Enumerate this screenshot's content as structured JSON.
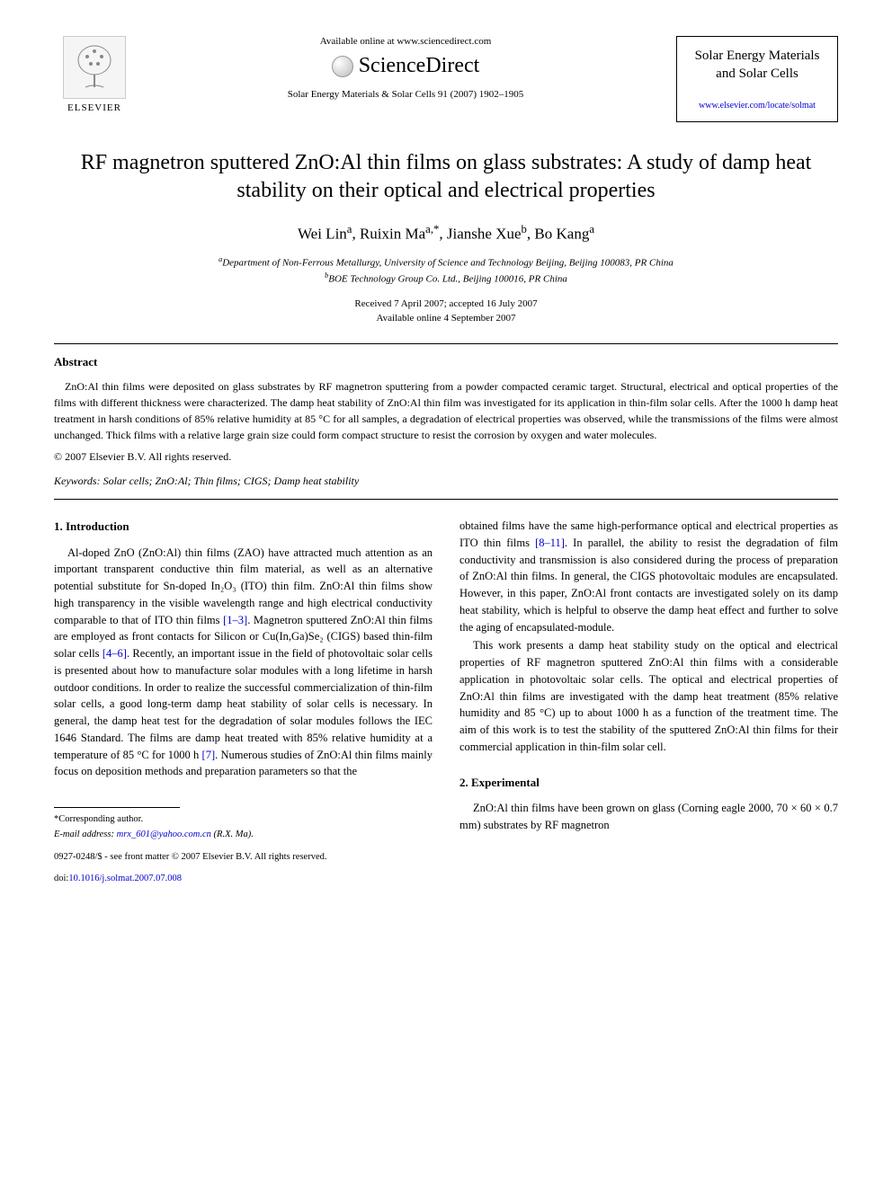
{
  "header": {
    "elsevier_label": "ELSEVIER",
    "available_online": "Available online at www.sciencedirect.com",
    "sciencedirect": "ScienceDirect",
    "citation": "Solar Energy Materials & Solar Cells 91 (2007) 1902–1905",
    "journal_title": "Solar Energy Materials and Solar Cells",
    "journal_link": "www.elsevier.com/locate/solmat"
  },
  "article": {
    "title": "RF magnetron sputtered ZnO:Al thin films on glass substrates: A study of damp heat stability on their optical and electrical properties",
    "authors_html": "Wei Lin<sup>a</sup>, Ruixin Ma<sup>a,*</sup>, Jianshe Xue<sup>b</sup>, Bo Kang<sup>a</sup>",
    "affiliation_a": "Department of Non-Ferrous Metallurgy, University of Science and Technology Beijing, Beijing 100083, PR China",
    "affiliation_b": "BOE Technology Group Co. Ltd., Beijing 100016, PR China",
    "received": "Received 7 April 2007; accepted 16 July 2007",
    "available": "Available online 4 September 2007"
  },
  "abstract": {
    "heading": "Abstract",
    "text": "ZnO:Al thin films were deposited on glass substrates by RF magnetron sputtering from a powder compacted ceramic target. Structural, electrical and optical properties of the films with different thickness were characterized. The damp heat stability of ZnO:Al thin film was investigated for its application in thin-film solar cells. After the 1000 h damp heat treatment in harsh conditions of 85% relative humidity at 85 °C for all samples, a degradation of electrical properties was observed, while the transmissions of the films were almost unchanged. Thick films with a relative large grain size could form compact structure to resist the corrosion by oxygen and water molecules.",
    "copyright": "© 2007 Elsevier B.V. All rights reserved.",
    "keywords_label": "Keywords:",
    "keywords": "Solar cells; ZnO:Al; Thin films; CIGS; Damp heat stability"
  },
  "sections": {
    "intro_heading": "1. Introduction",
    "intro_p1_pre": "Al-doped ZnO (ZnO:Al) thin films (ZAO) have attracted much attention as an important transparent conductive thin film material, as well as an alternative potential substitute for Sn-doped In₂O₃ (ITO) thin film. ZnO:Al thin films show high transparency in the visible wavelength range and high electrical conductivity comparable to that of ITO thin films ",
    "ref_1_3": "[1–3]",
    "intro_p1_mid": ". Magnetron sputtered ZnO:Al thin films are employed as front contacts for Silicon or Cu(In,Ga)Se₂ (CIGS) based thin-film solar cells ",
    "ref_4_6": "[4–6]",
    "intro_p1_mid2": ". Recently, an important issue in the field of photovoltaic solar cells is presented about how to manufacture solar modules with a long lifetime in harsh outdoor conditions. In order to realize the successful commercialization of thin-film solar cells, a good long-term damp heat stability of solar cells is necessary. In general, the damp heat test for the degradation of solar modules follows the IEC 1646 Standard. The films are damp heat treated with 85% relative humidity at a temperature of 85 °C for 1000 h ",
    "ref_7": "[7]",
    "intro_p1_end": ". Numerous studies of ZnO:Al thin films mainly focus on deposition methods and preparation parameters so that the",
    "col2_p1_pre": "obtained films have the same high-performance optical and electrical properties as ITO thin films ",
    "ref_8_11": "[8–11]",
    "col2_p1_end": ". In parallel, the ability to resist the degradation of film conductivity and transmission is also considered during the process of preparation of ZnO:Al thin films. In general, the CIGS photovoltaic modules are encapsulated. However, in this paper, ZnO:Al front contacts are investigated solely on its damp heat stability, which is helpful to observe the damp heat effect and further to solve the aging of encapsulated-module.",
    "col2_p2": "This work presents a damp heat stability study on the optical and electrical properties of RF magnetron sputtered ZnO:Al thin films with a considerable application in photovoltaic solar cells. The optical and electrical properties of ZnO:Al thin films are investigated with the damp heat treatment (85% relative humidity and 85 °C) up to about 1000 h as a function of the treatment time. The aim of this work is to test the stability of the sputtered ZnO:Al thin films for their commercial application in thin-film solar cell.",
    "exp_heading": "2. Experimental",
    "exp_p1": "ZnO:Al thin films have been grown on glass (Corning eagle 2000, 70 × 60 × 0.7 mm) substrates by RF magnetron"
  },
  "footer": {
    "corresponding": "*Corresponding author.",
    "email_label": "E-mail address:",
    "email": "mrx_601@yahoo.com.cn",
    "email_attribution": "(R.X. Ma).",
    "front_matter": "0927-0248/$ - see front matter © 2007 Elsevier B.V. All rights reserved.",
    "doi_label": "doi:",
    "doi": "10.1016/j.solmat.2007.07.008"
  },
  "styling": {
    "body_width": 992,
    "body_font": "Georgia, Times New Roman, serif",
    "title_fontsize": 24,
    "author_fontsize": 17,
    "body_fontsize": 12.5,
    "small_fontsize": 11,
    "link_color": "#0000cc",
    "text_color": "#000000",
    "background": "#ffffff"
  }
}
